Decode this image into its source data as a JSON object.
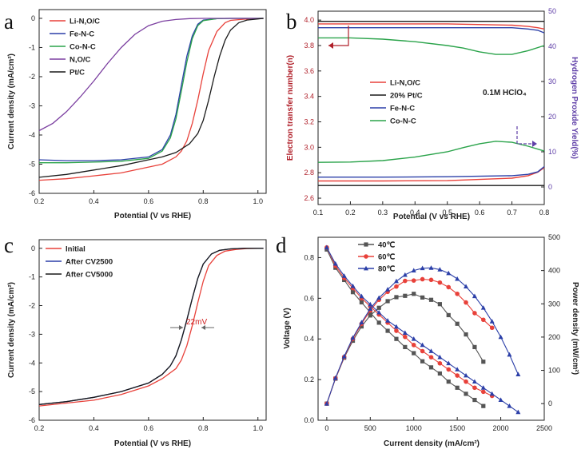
{
  "colors": {
    "red": "#e8413a",
    "black": "#1a1a1a",
    "blue": "#2b3fa8",
    "green": "#2aa34a",
    "purple": "#7b3fa0",
    "gray": "#555555",
    "darkred": "#b0202a",
    "dashblue": "#6040a8"
  },
  "panel_labels": {
    "a": "a",
    "b": "b",
    "c": "c",
    "d": "d"
  },
  "chart_data": [
    {
      "id": "a",
      "type": "line",
      "xlabel": "Potential (V vs RHE)",
      "ylabel": "Current density (mA/cm²)",
      "xlim": [
        0.2,
        1.03
      ],
      "ylim": [
        -6,
        0.3
      ],
      "xticks": [
        0.2,
        0.4,
        0.6,
        0.8,
        1.0
      ],
      "xtick_labels": [
        "0.2",
        "0.4",
        "0.6",
        "0.8",
        "1.0"
      ],
      "yticks": [
        0,
        -1,
        -2,
        -3,
        -4,
        -5,
        -6
      ],
      "ytick_labels": [
        "0",
        "-1",
        "-2",
        "-3",
        "-4",
        "-5",
        "-6"
      ],
      "series": [
        {
          "name": "Li-N,O/C",
          "color": "red",
          "x": [
            0.2,
            0.3,
            0.4,
            0.5,
            0.6,
            0.65,
            0.7,
            0.72,
            0.74,
            0.76,
            0.78,
            0.8,
            0.82,
            0.85,
            0.88,
            0.9,
            0.95,
            1.0,
            1.02
          ],
          "y": [
            -5.55,
            -5.5,
            -5.4,
            -5.3,
            -5.1,
            -5.0,
            -4.75,
            -4.55,
            -4.2,
            -3.6,
            -2.8,
            -1.9,
            -1.1,
            -0.45,
            -0.15,
            -0.07,
            -0.03,
            -0.01,
            0
          ]
        },
        {
          "name": "Fe-N-C",
          "color": "blue",
          "x": [
            0.2,
            0.3,
            0.4,
            0.5,
            0.6,
            0.65,
            0.68,
            0.7,
            0.72,
            0.74,
            0.76,
            0.78,
            0.8,
            0.85,
            0.9,
            1.0,
            1.02
          ],
          "y": [
            -4.85,
            -4.88,
            -4.88,
            -4.85,
            -4.75,
            -4.5,
            -4.0,
            -3.3,
            -2.3,
            -1.3,
            -0.6,
            -0.2,
            -0.06,
            -0.01,
            0,
            0,
            0
          ]
        },
        {
          "name": "Co-N-C",
          "color": "green",
          "x": [
            0.2,
            0.3,
            0.4,
            0.5,
            0.6,
            0.65,
            0.68,
            0.7,
            0.72,
            0.74,
            0.76,
            0.78,
            0.8,
            0.85,
            0.9,
            1.0,
            1.02
          ],
          "y": [
            -4.95,
            -4.95,
            -4.93,
            -4.9,
            -4.8,
            -4.55,
            -4.1,
            -3.45,
            -2.5,
            -1.5,
            -0.7,
            -0.25,
            -0.08,
            -0.01,
            0,
            0,
            0
          ]
        },
        {
          "name": "N,O/C",
          "color": "purple",
          "x": [
            0.2,
            0.25,
            0.3,
            0.35,
            0.4,
            0.45,
            0.5,
            0.55,
            0.6,
            0.65,
            0.7,
            0.75,
            0.8,
            0.9,
            1.0,
            1.02
          ],
          "y": [
            -3.85,
            -3.6,
            -3.2,
            -2.7,
            -2.15,
            -1.55,
            -1.0,
            -0.55,
            -0.25,
            -0.1,
            -0.04,
            -0.01,
            0,
            0,
            0,
            0
          ]
        },
        {
          "name": "Pt/C",
          "color": "black",
          "x": [
            0.2,
            0.3,
            0.4,
            0.5,
            0.6,
            0.65,
            0.7,
            0.75,
            0.78,
            0.8,
            0.82,
            0.84,
            0.86,
            0.88,
            0.9,
            0.93,
            0.96,
            1.0,
            1.02
          ],
          "y": [
            -5.45,
            -5.35,
            -5.2,
            -5.05,
            -4.85,
            -4.75,
            -4.6,
            -4.3,
            -3.95,
            -3.5,
            -2.8,
            -2.0,
            -1.3,
            -0.75,
            -0.4,
            -0.15,
            -0.06,
            -0.02,
            0
          ]
        }
      ]
    },
    {
      "id": "b",
      "type": "line",
      "xlabel": "Potential (V vs RHE)",
      "ylabel": "Electron transfer number(n)",
      "y2label": "Hydrogen Proxide Yield(%)",
      "annotation": "0.1M HClO₄",
      "xlim": [
        0.1,
        0.8
      ],
      "ylim": [
        2.55,
        4.07
      ],
      "y2lim": [
        -5,
        50
      ],
      "xticks": [
        0.1,
        0.2,
        0.3,
        0.4,
        0.5,
        0.6,
        0.7,
        0.8
      ],
      "xtick_labels": [
        "0.1",
        "0.2",
        "0.3",
        "0.4",
        "0.5",
        "0.6",
        "0.7",
        "0.8"
      ],
      "yticks": [
        2.6,
        2.8,
        3.0,
        3.2,
        3.4,
        3.6,
        3.8,
        4.0
      ],
      "ytick_labels": [
        "2.6",
        "2.8",
        "3.0",
        "3.2",
        "3.4",
        "3.6",
        "3.8",
        "4.0"
      ],
      "y2ticks": [
        0,
        10,
        20,
        30,
        40,
        50
      ],
      "y2tick_labels": [
        "0",
        "10",
        "20",
        "30",
        "40",
        "50"
      ],
      "n_series": [
        {
          "name": "Li-N,O/C",
          "color": "red",
          "x": [
            0.1,
            0.3,
            0.5,
            0.7,
            0.75,
            0.78,
            0.8
          ],
          "y": [
            3.97,
            3.97,
            3.97,
            3.96,
            3.95,
            3.94,
            3.93
          ]
        },
        {
          "name": "20% Pt/C",
          "color": "black",
          "x": [
            0.1,
            0.3,
            0.5,
            0.7,
            0.8
          ],
          "y": [
            3.99,
            3.99,
            3.99,
            3.99,
            3.99
          ]
        },
        {
          "name": "Fe-N-C",
          "color": "blue",
          "x": [
            0.1,
            0.3,
            0.5,
            0.7,
            0.75,
            0.78,
            0.8
          ],
          "y": [
            3.94,
            3.94,
            3.94,
            3.94,
            3.93,
            3.92,
            3.9
          ]
        },
        {
          "name": "Co-N-C",
          "color": "green",
          "x": [
            0.1,
            0.2,
            0.3,
            0.4,
            0.5,
            0.55,
            0.6,
            0.65,
            0.7,
            0.75,
            0.8
          ],
          "y": [
            3.86,
            3.86,
            3.85,
            3.83,
            3.8,
            3.78,
            3.75,
            3.73,
            3.73,
            3.76,
            3.8
          ]
        }
      ],
      "h2o2_series": [
        {
          "name": "Li-N,O/C",
          "color": "red",
          "x": [
            0.1,
            0.3,
            0.5,
            0.7,
            0.75,
            0.78,
            0.8
          ],
          "y": [
            1.7,
            1.7,
            1.8,
            2.5,
            3.2,
            4.2,
            5.5
          ]
        },
        {
          "name": "20% Pt/C",
          "color": "black",
          "x": [
            0.1,
            0.3,
            0.5,
            0.7,
            0.8
          ],
          "y": [
            0.4,
            0.4,
            0.4,
            0.4,
            0.4
          ]
        },
        {
          "name": "Fe-N-C",
          "color": "blue",
          "x": [
            0.1,
            0.3,
            0.5,
            0.7,
            0.75,
            0.78,
            0.8
          ],
          "y": [
            2.8,
            2.8,
            2.9,
            3.2,
            3.6,
            4.3,
            5.8
          ]
        },
        {
          "name": "Co-N-C",
          "color": "green",
          "x": [
            0.1,
            0.2,
            0.3,
            0.4,
            0.5,
            0.55,
            0.6,
            0.65,
            0.7,
            0.75,
            0.8
          ],
          "y": [
            7.0,
            7.1,
            7.5,
            8.5,
            10.0,
            11.2,
            12.3,
            13.0,
            12.7,
            11.6,
            10.2
          ]
        }
      ]
    },
    {
      "id": "c",
      "type": "line",
      "xlabel": "Potential (V vs RHE)",
      "ylabel": "Current density (mA/cm²)",
      "annotation": "22mV",
      "xlim": [
        0.2,
        1.03
      ],
      "ylim": [
        -6,
        0.3
      ],
      "xticks": [
        0.2,
        0.4,
        0.6,
        0.8,
        1.0
      ],
      "xtick_labels": [
        "0.2",
        "0.4",
        "0.6",
        "0.8",
        "1.0"
      ],
      "yticks": [
        0,
        -1,
        -2,
        -3,
        -4,
        -5,
        -6
      ],
      "ytick_labels": [
        "0",
        "-1",
        "-2",
        "-3",
        "-4",
        "-5",
        "-6"
      ],
      "series": [
        {
          "name": "Initial",
          "color": "red",
          "x": [
            0.2,
            0.3,
            0.4,
            0.5,
            0.6,
            0.65,
            0.7,
            0.72,
            0.74,
            0.76,
            0.78,
            0.8,
            0.82,
            0.85,
            0.88,
            0.92,
            0.96,
            1.0,
            1.02
          ],
          "y": [
            -5.5,
            -5.4,
            -5.3,
            -5.1,
            -4.8,
            -4.55,
            -4.2,
            -3.9,
            -3.4,
            -2.7,
            -1.9,
            -1.15,
            -0.6,
            -0.25,
            -0.1,
            -0.04,
            -0.01,
            0,
            0
          ]
        },
        {
          "name": "After CV2500",
          "color": "blue",
          "x": [
            0.2,
            0.3,
            0.4,
            0.5,
            0.6,
            0.65,
            0.68,
            0.7,
            0.72,
            0.74,
            0.76,
            0.78,
            0.8,
            0.83,
            0.86,
            0.9,
            0.95,
            1.0,
            1.02
          ],
          "y": [
            -5.45,
            -5.35,
            -5.2,
            -5.0,
            -4.7,
            -4.4,
            -4.1,
            -3.75,
            -3.2,
            -2.5,
            -1.75,
            -1.05,
            -0.55,
            -0.2,
            -0.07,
            -0.02,
            0,
            0,
            0
          ]
        },
        {
          "name": "After CV5000",
          "color": "black",
          "x": [
            0.2,
            0.3,
            0.4,
            0.5,
            0.6,
            0.65,
            0.68,
            0.7,
            0.72,
            0.74,
            0.76,
            0.78,
            0.8,
            0.83,
            0.86,
            0.9,
            0.95,
            1.0,
            1.02
          ],
          "y": [
            -5.45,
            -5.35,
            -5.2,
            -5.0,
            -4.7,
            -4.4,
            -4.1,
            -3.75,
            -3.2,
            -2.5,
            -1.75,
            -1.05,
            -0.55,
            -0.2,
            -0.07,
            -0.02,
            0,
            0,
            0
          ]
        }
      ]
    },
    {
      "id": "d",
      "type": "line",
      "xlabel": "Current density (mA/cm²)",
      "ylabel": "Voltage (V)",
      "y2label": "Power density (mW/cm²)",
      "xlim": [
        -100,
        2500
      ],
      "ylim": [
        0,
        0.9
      ],
      "y2lim": [
        -50,
        500
      ],
      "xticks": [
        0,
        500,
        1000,
        1500,
        2000,
        2500
      ],
      "xtick_labels": [
        "0",
        "500",
        "1000",
        "1500",
        "2000",
        "2500"
      ],
      "yticks": [
        0,
        0.2,
        0.4,
        0.6,
        0.8
      ],
      "ytick_labels": [
        "0.0",
        "0.2",
        "0.4",
        "0.6",
        "0.8"
      ],
      "y2ticks": [
        0,
        100,
        200,
        300,
        400,
        500
      ],
      "y2tick_labels": [
        "0",
        "100",
        "200",
        "300",
        "400",
        "500"
      ],
      "series": [
        {
          "name": "40℃",
          "color": "gray",
          "marker": "square",
          "x": [
            0,
            100,
            200,
            300,
            400,
            500,
            600,
            700,
            800,
            900,
            1000,
            1100,
            1200,
            1300,
            1400,
            1500,
            1600,
            1700,
            1800
          ],
          "voltage": [
            0.84,
            0.75,
            0.69,
            0.63,
            0.58,
            0.53,
            0.48,
            0.44,
            0.4,
            0.36,
            0.33,
            0.29,
            0.26,
            0.23,
            0.19,
            0.16,
            0.13,
            0.1,
            0.07
          ],
          "power": [
            0,
            75,
            138,
            189,
            232,
            265,
            288,
            308,
            320,
            324,
            330,
            319,
            312,
            299,
            266,
            240,
            208,
            170,
            126
          ]
        },
        {
          "name": "60℃",
          "color": "red",
          "marker": "circle",
          "x": [
            0,
            100,
            200,
            300,
            400,
            500,
            600,
            700,
            800,
            900,
            1000,
            1100,
            1200,
            1300,
            1400,
            1500,
            1600,
            1700,
            1800,
            1900
          ],
          "voltage": [
            0.85,
            0.76,
            0.7,
            0.65,
            0.6,
            0.56,
            0.52,
            0.48,
            0.44,
            0.41,
            0.37,
            0.34,
            0.31,
            0.28,
            0.25,
            0.22,
            0.19,
            0.16,
            0.14,
            0.12
          ],
          "power": [
            0,
            76,
            140,
            195,
            240,
            280,
            312,
            336,
            352,
            369,
            370,
            374,
            372,
            364,
            350,
            330,
            304,
            272,
            252,
            228
          ]
        },
        {
          "name": "80℃",
          "color": "blue",
          "marker": "triangle",
          "x": [
            0,
            100,
            200,
            300,
            400,
            500,
            600,
            700,
            800,
            900,
            1000,
            1100,
            1200,
            1300,
            1400,
            1500,
            1600,
            1700,
            1800,
            1900,
            2000,
            2100,
            2200
          ],
          "voltage": [
            0.85,
            0.77,
            0.71,
            0.66,
            0.61,
            0.57,
            0.53,
            0.49,
            0.46,
            0.43,
            0.4,
            0.37,
            0.34,
            0.31,
            0.28,
            0.25,
            0.22,
            0.19,
            0.16,
            0.13,
            0.1,
            0.07,
            0.04
          ],
          "power": [
            0,
            77,
            142,
            198,
            244,
            285,
            318,
            343,
            368,
            387,
            400,
            407,
            408,
            403,
            392,
            375,
            352,
            323,
            288,
            247,
            200,
            147,
            88
          ]
        }
      ]
    }
  ]
}
